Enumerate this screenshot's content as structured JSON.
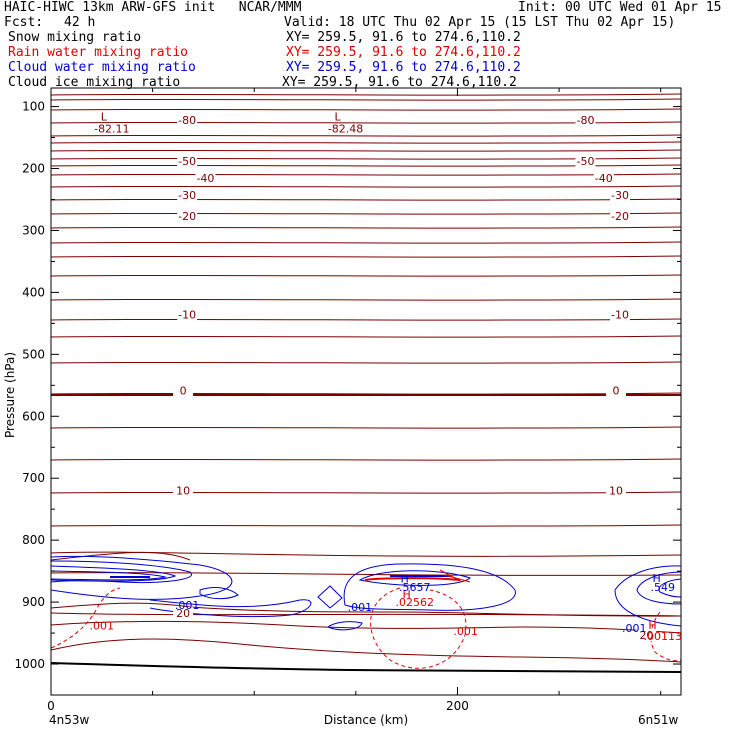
{
  "header": {
    "title": "HAIC-HIWC 13km ARW-GFS init   NCAR/MMM",
    "init": "Init: 00 UTC Wed 01 Apr 15",
    "fcst_label": "Fcst:",
    "fcst_value": "42 h",
    "valid": "Valid: 18 UTC Thu 02 Apr 15 (15 LST Thu 02 Apr 15)"
  },
  "fields": [
    {
      "name": "Snow mixing ratio",
      "xy": "XY= 259.5, 91.6 to 274.6,110.2",
      "color": "#000000"
    },
    {
      "name": "Rain water mixing ratio",
      "xy": "XY= 259.5, 91.6 to 274.6,110.2",
      "color": "#e00000"
    },
    {
      "name": "Cloud water mixing ratio",
      "xy": "XY= 259.5, 91.6 to 274.6,110.2",
      "color": "#0000d0"
    },
    {
      "name": "Cloud ice mixing ratio",
      "xy": "XY= 259.5, 91.6 to 274.6,110.2",
      "color": "#000000"
    }
  ],
  "chart_data": {
    "type": "line",
    "xlabel": "Distance (km)",
    "ylabel": "Pressure (hPa)",
    "xlim": [
      0,
      310
    ],
    "ylim": [
      1050,
      70
    ],
    "x_ticks": [
      0,
      200
    ],
    "x_minor_ticks": [
      50,
      100,
      150,
      250,
      300
    ],
    "y_ticks": [
      100,
      200,
      300,
      400,
      500,
      600,
      700,
      800,
      900,
      1000
    ],
    "endpoints": {
      "left": "4n53w",
      "right": "6n51w"
    },
    "colors": {
      "temperature": "#7a0000",
      "rain": "#e00000",
      "cloud": "#0000d0",
      "ground": "#000000"
    },
    "temperature_labels": [
      {
        "text": "-80",
        "x": 67,
        "p": 122
      },
      {
        "text": "-80",
        "x": 263,
        "p": 122
      },
      {
        "text": "-50",
        "x": 67,
        "p": 188
      },
      {
        "text": "-50",
        "x": 263,
        "p": 188
      },
      {
        "text": "-40",
        "x": 76,
        "p": 215
      },
      {
        "text": "-40",
        "x": 272,
        "p": 215
      },
      {
        "text": "-30",
        "x": 67,
        "p": 243
      },
      {
        "text": "-30",
        "x": 280,
        "p": 243
      },
      {
        "text": "-20",
        "x": 67,
        "p": 277
      },
      {
        "text": "-20",
        "x": 280,
        "p": 277
      },
      {
        "text": "-10",
        "x": 67,
        "p": 436
      },
      {
        "text": "-10",
        "x": 280,
        "p": 436
      },
      {
        "text": "0",
        "x": 65,
        "p": 558
      },
      {
        "text": "0",
        "x": 278,
        "p": 558
      },
      {
        "text": "10",
        "x": 65,
        "p": 720
      },
      {
        "text": "10",
        "x": 278,
        "p": 720
      },
      {
        "text": "20",
        "x": 65,
        "p": 918
      },
      {
        "text": "20",
        "x": 293,
        "p": 953
      }
    ],
    "extrema": [
      {
        "symbol": "L",
        "value": "-82.11",
        "x": 26,
        "p": 77
      },
      {
        "symbol": "L",
        "value": "-82.48",
        "x": 141,
        "p": 77
      }
    ],
    "rain_labels": [
      {
        "text": ".001",
        "x": 25,
        "p": 938
      },
      {
        "text": ".001",
        "x": 204,
        "p": 947
      },
      {
        "text": ".02562",
        "x": 179,
        "p": 900
      },
      {
        "text": "H",
        "x": 175,
        "p": 887
      },
      {
        "text": "H",
        "x": 296,
        "p": 937
      },
      {
        "text": ".00113",
        "x": 301,
        "p": 955
      }
    ],
    "cloud_labels": [
      {
        "text": ".001",
        "x": 67,
        "p": 905
      },
      {
        "text": ".001",
        "x": 152,
        "p": 908
      },
      {
        "text": "H",
        "x": 174,
        "p": 862
      },
      {
        "text": ".5657",
        "x": 179,
        "p": 876
      },
      {
        "text": "H",
        "x": 298,
        "p": 861
      },
      {
        "text": ".549",
        "x": 301,
        "p": 876
      },
      {
        "text": ".001",
        "x": 287,
        "p": 942
      }
    ]
  }
}
